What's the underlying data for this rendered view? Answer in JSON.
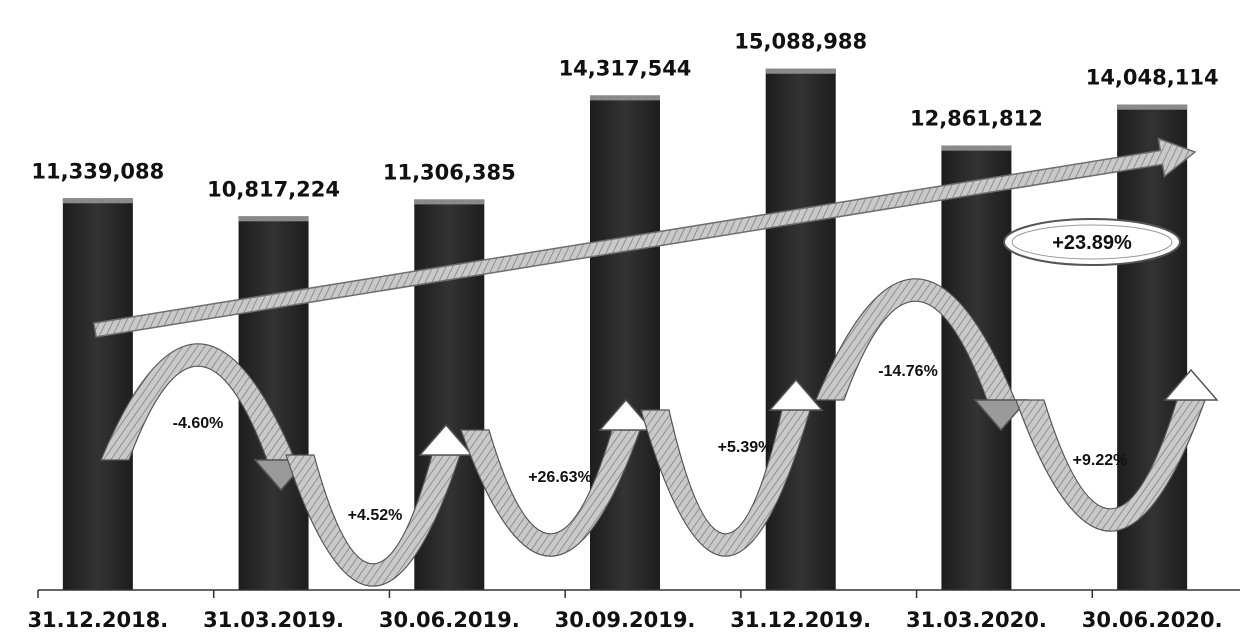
{
  "chart_data": {
    "type": "bar",
    "categories": [
      "31.12.2018.",
      "31.03.2019.",
      "30.06.2019.",
      "30.09.2019.",
      "31.12.2019.",
      "31.03.2020.",
      "30.06.2020."
    ],
    "values": [
      11339088,
      10817224,
      11306385,
      14317544,
      15088988,
      12861812,
      14048114
    ],
    "value_labels": [
      "11,339,088",
      "10,817,224",
      "11,306,385",
      "14,317,544",
      "15,088,988",
      "12,861,812",
      "14,048,114"
    ],
    "changes": [
      "-4.60%",
      "+4.52%",
      "+26.63%",
      "+5.39%",
      "-14.76%",
      "+9.22%"
    ],
    "total_change": "+23.89%",
    "title": "",
    "xlabel": "",
    "ylabel": "",
    "ylim": [
      0,
      16500000
    ],
    "grid": false,
    "colors": {
      "bar": "#262626",
      "bar_top": "#8a8a8a",
      "arrow_fill": "#b8b8b8",
      "arrow_stroke": "#555555"
    }
  }
}
